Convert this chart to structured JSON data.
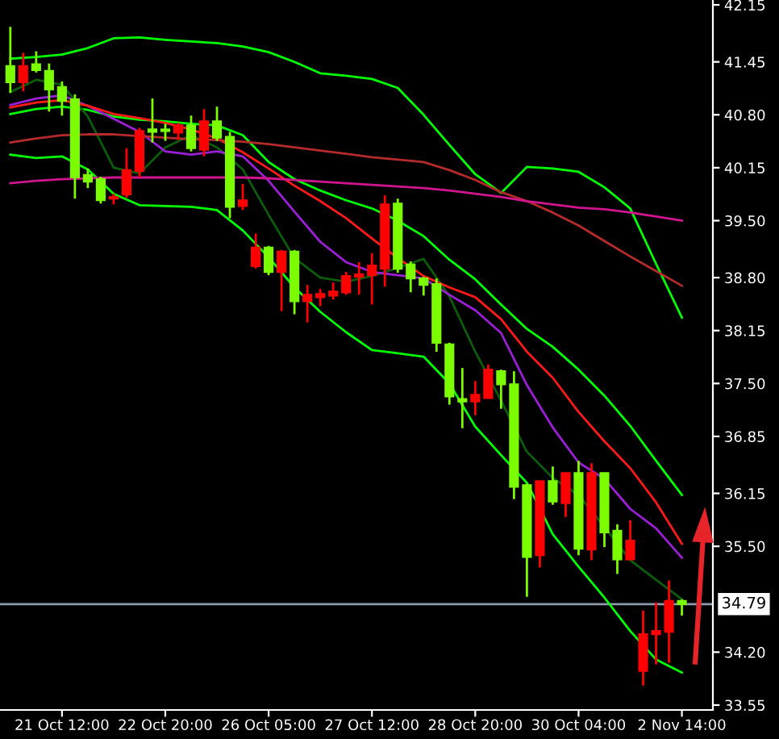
{
  "chart_data": {
    "type": "candlestick",
    "categories": [
      null,
      null,
      null,
      null,
      "21 Oct 12:00",
      null,
      null,
      null,
      null,
      null,
      null,
      null,
      "22 Oct 20:00",
      null,
      null,
      null,
      null,
      null,
      null,
      null,
      "26 Oct 05:00",
      null,
      null,
      null,
      null,
      null,
      null,
      null,
      "27 Oct 12:00",
      null,
      null,
      null,
      null,
      null,
      null,
      null,
      "28 Oct 20:00",
      null,
      null,
      null,
      null,
      null,
      null,
      null,
      "30 Oct 04:00",
      null,
      null,
      null,
      null,
      null,
      null,
      null,
      "2 Nov 14:00"
    ],
    "ylim": [
      33.49,
      42.21
    ],
    "yticks": [
      42.15,
      41.45,
      {
        "value": 40.8,
        "label": "40.80"
      },
      40.15,
      {
        "value": 39.5,
        "label": "39.50"
      },
      {
        "value": 38.8,
        "label": "38.80"
      },
      38.15,
      {
        "value": 37.5,
        "label": "37.50"
      },
      36.85,
      36.15,
      {
        "value": 35.5,
        "label": "35.50"
      },
      {
        "value": 34.2,
        "label": "34.20"
      },
      33.55
    ],
    "ref_lines": [
      {
        "axis": "y",
        "value": 34.79,
        "label": "34.79",
        "color": "#8c9aab"
      }
    ],
    "ohlc": [
      [
        41.4,
        41.88,
        41.07,
        41.2
      ],
      [
        41.2,
        41.56,
        41.09,
        41.4
      ],
      [
        41.42,
        41.58,
        41.32,
        41.35
      ],
      [
        41.34,
        41.43,
        40.84,
        41.11
      ],
      [
        41.14,
        41.21,
        40.79,
        40.97
      ],
      [
        40.99,
        41.05,
        39.77,
        40.03
      ],
      [
        40.06,
        40.14,
        39.9,
        39.98
      ],
      [
        40.01,
        40.04,
        39.71,
        39.75
      ],
      [
        39.77,
        39.83,
        39.7,
        39.79
      ],
      [
        39.82,
        40.39,
        39.78,
        40.12
      ],
      [
        40.11,
        40.64,
        40.03,
        40.6
      ],
      [
        40.62,
        41.0,
        40.46,
        40.59
      ],
      [
        40.62,
        40.69,
        40.48,
        40.6
      ],
      [
        40.58,
        40.7,
        40.49,
        40.67
      ],
      [
        40.67,
        40.79,
        40.35,
        40.39
      ],
      [
        40.37,
        40.87,
        40.29,
        40.72
      ],
      [
        40.72,
        40.9,
        40.48,
        40.52
      ],
      [
        40.53,
        40.59,
        39.53,
        39.67
      ],
      [
        39.68,
        39.95,
        39.63,
        39.75
      ],
      [
        38.94,
        39.34,
        38.91,
        39.17
      ],
      [
        39.17,
        39.19,
        38.83,
        38.87
      ],
      [
        38.87,
        39.14,
        38.39,
        39.12
      ],
      [
        39.12,
        39.14,
        38.35,
        38.51
      ],
      [
        38.51,
        38.71,
        38.25,
        38.59
      ],
      [
        38.56,
        38.66,
        38.45,
        38.6
      ],
      [
        38.58,
        38.74,
        38.53,
        38.63
      ],
      [
        38.62,
        38.87,
        38.59,
        38.82
      ],
      [
        38.81,
        38.99,
        38.59,
        38.84
      ],
      [
        38.83,
        39.1,
        38.47,
        38.95
      ],
      [
        38.91,
        39.81,
        38.69,
        39.7
      ],
      [
        39.71,
        39.77,
        38.86,
        38.91
      ],
      [
        38.96,
        39.0,
        38.62,
        38.79
      ],
      [
        38.79,
        38.81,
        38.58,
        38.71
      ],
      [
        38.72,
        38.79,
        37.89,
        38.0
      ],
      [
        37.98,
        38.0,
        37.24,
        37.34
      ],
      [
        37.31,
        37.69,
        36.95,
        37.28
      ],
      [
        37.28,
        37.53,
        37.11,
        37.36
      ],
      [
        37.32,
        37.73,
        37.31,
        37.67
      ],
      [
        37.65,
        37.67,
        37.19,
        37.49
      ],
      [
        37.49,
        37.65,
        36.08,
        36.23
      ],
      [
        36.25,
        36.27,
        34.88,
        35.37
      ],
      [
        35.39,
        36.3,
        35.24,
        36.3
      ],
      [
        36.3,
        36.48,
        36.01,
        36.05
      ],
      [
        36.03,
        36.4,
        35.86,
        36.4
      ],
      [
        36.4,
        36.55,
        35.39,
        35.47
      ],
      [
        35.46,
        36.52,
        35.33,
        36.4
      ],
      [
        36.4,
        36.4,
        35.49,
        35.67
      ],
      [
        35.69,
        35.77,
        35.16,
        35.34
      ],
      [
        35.34,
        35.82,
        35.34,
        35.57
      ],
      [
        33.97,
        34.71,
        33.79,
        34.42
      ],
      [
        34.42,
        34.81,
        34.05,
        34.46
      ],
      [
        34.45,
        35.08,
        34.07,
        34.83
      ],
      [
        34.83,
        34.85,
        34.65,
        34.79
      ]
    ],
    "colors": [
      "#7cfc00",
      "#ff0000",
      "#7cfc00",
      "#7cfc00",
      "#7cfc00",
      "#7cfc00",
      "#7cfc00",
      "#7cfc00",
      "#ff0000",
      "#ff0000",
      "#ff0000",
      "#7cfc00",
      "#7cfc00",
      "#ff0000",
      "#7cfc00",
      "#ff0000",
      "#7cfc00",
      "#7cfc00",
      "#ff0000",
      "#ff0000",
      "#7cfc00",
      "#ff0000",
      "#7cfc00",
      "#ff0000",
      "#ff0000",
      "#ff0000",
      "#ff0000",
      "#ff0000",
      "#ff0000",
      "#ff0000",
      "#7cfc00",
      "#7cfc00",
      "#7cfc00",
      "#7cfc00",
      "#7cfc00",
      "#7cfc00",
      "#ff0000",
      "#ff0000",
      "#7cfc00",
      "#7cfc00",
      "#7cfc00",
      "#ff0000",
      "#7cfc00",
      "#ff0000",
      "#7cfc00",
      "#ff0000",
      "#7cfc00",
      "#7cfc00",
      "#ff0000",
      "#ff0000",
      "#ff0000",
      "#ff0000",
      "#7cfc00"
    ],
    "series": [
      {
        "type": "line",
        "color": "#00ff00",
        "values": [
          41.49,
          null,
          41.51,
          null,
          41.54,
          null,
          41.62,
          null,
          41.74,
          null,
          41.75,
          null,
          41.72,
          null,
          41.7,
          null,
          41.68,
          null,
          41.64,
          null,
          41.57,
          null,
          41.45,
          null,
          41.31,
          null,
          41.28,
          null,
          41.24,
          null,
          41.13,
          null,
          40.8,
          null,
          40.43,
          null,
          40.07,
          null,
          39.84,
          null,
          40.16,
          null,
          40.14,
          null,
          40.1,
          null,
          39.91,
          null,
          39.65,
          null,
          38.97,
          null,
          38.31
        ]
      },
      {
        "type": "line",
        "color": "#00ff00",
        "values": [
          40.81,
          null,
          40.87,
          null,
          40.9,
          null,
          40.86,
          null,
          40.78,
          null,
          40.74,
          null,
          40.72,
          null,
          40.69,
          null,
          40.67,
          null,
          40.55,
          null,
          40.22,
          null,
          40.01,
          null,
          39.87,
          null,
          39.75,
          null,
          39.65,
          null,
          39.5,
          null,
          39.31,
          null,
          39.02,
          null,
          38.78,
          null,
          38.47,
          null,
          38.17,
          null,
          37.95,
          null,
          37.67,
          null,
          37.35,
          null,
          36.98,
          null,
          36.55,
          null,
          36.13
        ]
      },
      {
        "type": "line",
        "color": "#00ff00",
        "values": [
          40.31,
          null,
          40.27,
          null,
          40.29,
          null,
          40.13,
          null,
          39.83,
          null,
          39.69,
          null,
          39.68,
          null,
          39.67,
          null,
          39.63,
          null,
          39.38,
          null,
          39.05,
          null,
          38.68,
          null,
          38.38,
          null,
          38.13,
          null,
          37.91,
          null,
          37.87,
          null,
          37.83,
          null,
          37.5,
          null,
          36.97,
          null,
          36.62,
          null,
          36.28,
          null,
          35.65,
          null,
          35.25,
          null,
          34.87,
          null,
          34.46,
          null,
          34.11,
          null,
          33.95
        ]
      },
      {
        "type": "line",
        "color": "#0b5d0b",
        "values": [
          41.08,
          null,
          41.23,
          null,
          41.17,
          null,
          40.78,
          null,
          40.15,
          null,
          40.08,
          null,
          40.4,
          null,
          40.55,
          null,
          40.4,
          null,
          40.13,
          null,
          39.57,
          null,
          39.04,
          null,
          38.8,
          null,
          38.75,
          null,
          38.82,
          null,
          38.92,
          null,
          39.03,
          null,
          38.57,
          null,
          37.89,
          null,
          37.29,
          null,
          36.66,
          null,
          36.34,
          null,
          36.13,
          null,
          35.74,
          null,
          35.33,
          null,
          35.09,
          null,
          34.85
        ]
      },
      {
        "type": "line",
        "color": "#9b1fd6",
        "values": [
          40.92,
          null,
          41.0,
          null,
          41.04,
          null,
          40.91,
          null,
          40.75,
          null,
          40.59,
          null,
          40.35,
          null,
          40.31,
          null,
          40.35,
          null,
          40.29,
          null,
          39.99,
          null,
          39.61,
          null,
          39.24,
          null,
          38.99,
          null,
          38.87,
          null,
          38.83,
          null,
          38.79,
          null,
          38.59,
          null,
          38.4,
          null,
          38.12,
          null,
          37.48,
          null,
          36.96,
          null,
          36.53,
          null,
          36.33,
          null,
          35.96,
          null,
          35.72,
          null,
          35.36
        ]
      },
      {
        "type": "line",
        "color": "#ff1a1a",
        "values": [
          40.89,
          null,
          40.95,
          null,
          40.98,
          null,
          40.91,
          null,
          40.81,
          null,
          40.76,
          null,
          40.7,
          null,
          40.62,
          null,
          40.51,
          null,
          40.34,
          null,
          40.14,
          null,
          39.93,
          null,
          39.74,
          null,
          39.53,
          null,
          39.28,
          null,
          39.04,
          null,
          38.82,
          null,
          38.68,
          null,
          38.56,
          null,
          38.29,
          null,
          37.89,
          null,
          37.57,
          null,
          37.15,
          null,
          36.79,
          null,
          36.46,
          null,
          36.04,
          null,
          35.53
        ]
      },
      {
        "type": "line",
        "color": "#b52a2a",
        "values": [
          40.46,
          null,
          40.51,
          null,
          40.55,
          null,
          40.56,
          null,
          40.56,
          null,
          40.54,
          null,
          40.52,
          null,
          40.5,
          null,
          40.49,
          null,
          40.47,
          null,
          40.44,
          null,
          40.4,
          null,
          40.36,
          null,
          40.32,
          null,
          40.28,
          null,
          40.25,
          null,
          40.22,
          null,
          40.12,
          null,
          40.0,
          null,
          39.85,
          null,
          39.74,
          null,
          39.6,
          null,
          39.44,
          null,
          39.25,
          null,
          39.06,
          null,
          38.88,
          null,
          38.7
        ]
      },
      {
        "type": "line",
        "color": "#d0158f",
        "values": [
          39.96,
          null,
          39.99,
          null,
          40.01,
          null,
          40.02,
          null,
          40.03,
          null,
          40.03,
          null,
          40.03,
          null,
          40.03,
          null,
          40.03,
          null,
          40.03,
          null,
          40.02,
          null,
          40.0,
          null,
          39.98,
          null,
          39.96,
          null,
          39.94,
          null,
          39.92,
          null,
          39.9,
          null,
          39.87,
          null,
          39.83,
          null,
          39.79,
          null,
          39.74,
          null,
          39.7,
          null,
          39.66,
          null,
          39.64,
          null,
          39.6,
          null,
          39.55,
          null,
          39.5
        ]
      }
    ]
  }
}
